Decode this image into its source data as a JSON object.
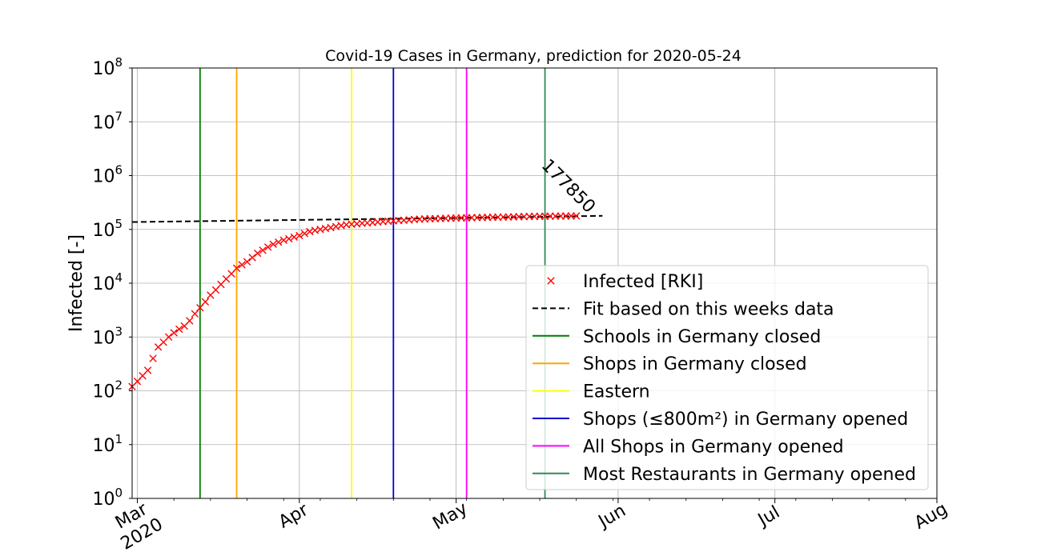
{
  "chart_data": {
    "type": "scatter",
    "title": "Covid-19 Cases in Germany, prediction for 2020-05-24",
    "xlabel": "",
    "ylabel": "Infected [-]",
    "yscale": "log",
    "ylim": [
      1,
      100000000
    ],
    "xlim": [
      "2020-02-29",
      "2020-08-01"
    ],
    "grid": true,
    "legend_position": "lower-right",
    "x_ticks": [
      {
        "date": "2020-03-01",
        "label": "Mar\n2020"
      },
      {
        "date": "2020-04-01",
        "label": "Apr"
      },
      {
        "date": "2020-05-01",
        "label": "May"
      },
      {
        "date": "2020-06-01",
        "label": "Jun"
      },
      {
        "date": "2020-07-01",
        "label": "Jul"
      },
      {
        "date": "2020-08-01",
        "label": "Aug"
      }
    ],
    "y_ticks": [
      {
        "value": 1,
        "base": "10",
        "exp": "0"
      },
      {
        "value": 10,
        "base": "10",
        "exp": "1"
      },
      {
        "value": 100,
        "base": "10",
        "exp": "2"
      },
      {
        "value": 1000,
        "base": "10",
        "exp": "3"
      },
      {
        "value": 10000,
        "base": "10",
        "exp": "4"
      },
      {
        "value": 100000,
        "base": "10",
        "exp": "5"
      },
      {
        "value": 1000000,
        "base": "10",
        "exp": "6"
      },
      {
        "value": 10000000,
        "base": "10",
        "exp": "7"
      },
      {
        "value": 100000000,
        "base": "10",
        "exp": "8"
      }
    ],
    "series": [
      {
        "name": "Infected [RKI]",
        "kind": "marker",
        "marker": "x",
        "color": "#ff0000",
        "x": [
          "2020-02-29",
          "2020-03-01",
          "2020-03-02",
          "2020-03-03",
          "2020-03-04",
          "2020-03-05",
          "2020-03-06",
          "2020-03-07",
          "2020-03-08",
          "2020-03-09",
          "2020-03-10",
          "2020-03-11",
          "2020-03-12",
          "2020-03-13",
          "2020-03-14",
          "2020-03-15",
          "2020-03-16",
          "2020-03-17",
          "2020-03-18",
          "2020-03-19",
          "2020-03-20",
          "2020-03-21",
          "2020-03-22",
          "2020-03-23",
          "2020-03-24",
          "2020-03-25",
          "2020-03-26",
          "2020-03-27",
          "2020-03-28",
          "2020-03-29",
          "2020-03-30",
          "2020-03-31",
          "2020-04-01",
          "2020-04-02",
          "2020-04-03",
          "2020-04-04",
          "2020-04-05",
          "2020-04-06",
          "2020-04-07",
          "2020-04-08",
          "2020-04-09",
          "2020-04-10",
          "2020-04-11",
          "2020-04-12",
          "2020-04-13",
          "2020-04-14",
          "2020-04-15",
          "2020-04-16",
          "2020-04-17",
          "2020-04-18",
          "2020-04-19",
          "2020-04-20",
          "2020-04-21",
          "2020-04-22",
          "2020-04-23",
          "2020-04-24",
          "2020-04-25",
          "2020-04-26",
          "2020-04-27",
          "2020-04-28",
          "2020-04-29",
          "2020-04-30",
          "2020-05-01",
          "2020-05-02",
          "2020-05-03",
          "2020-05-04",
          "2020-05-05",
          "2020-05-06",
          "2020-05-07",
          "2020-05-08",
          "2020-05-09",
          "2020-05-10",
          "2020-05-11",
          "2020-05-12",
          "2020-05-13",
          "2020-05-14",
          "2020-05-15",
          "2020-05-16",
          "2020-05-17",
          "2020-05-18",
          "2020-05-19",
          "2020-05-20",
          "2020-05-21",
          "2020-05-22",
          "2020-05-23",
          "2020-05-24"
        ],
        "y": [
          120,
          150,
          190,
          240,
          400,
          650,
          800,
          1000,
          1200,
          1400,
          1600,
          2000,
          2700,
          3500,
          4500,
          6000,
          7500,
          9500,
          12000,
          15000,
          19000,
          22000,
          25000,
          30000,
          36000,
          41000,
          47000,
          53000,
          58000,
          63000,
          67000,
          72000,
          77000,
          84000,
          91000,
          96000,
          100000,
          104000,
          108000,
          113000,
          118000,
          122000,
          125000,
          127000,
          130000,
          132000,
          134000,
          137000,
          140000,
          142000,
          144000,
          146000,
          148000,
          150000,
          153000,
          155000,
          156500,
          157500,
          158500,
          159500,
          160500,
          161500,
          162500,
          163200,
          164000,
          165000,
          165800,
          166500,
          167300,
          168200,
          169000,
          169800,
          170500,
          171300,
          172200,
          173000,
          173800,
          174500,
          175000,
          175500,
          176000,
          176500,
          177000,
          177300,
          177600,
          177850
        ]
      },
      {
        "name": "Fit based on this weeks data",
        "kind": "line",
        "dash": "dashed",
        "color": "#000000",
        "x": [
          "2020-02-29",
          "2020-03-15",
          "2020-04-01",
          "2020-04-15",
          "2020-05-01",
          "2020-05-15",
          "2020-05-29"
        ],
        "y": [
          137000,
          143000,
          150000,
          156000,
          163000,
          170000,
          179000
        ]
      }
    ],
    "vlines": [
      {
        "name": "Schools in Germany closed",
        "date": "2020-03-13",
        "color": "#008000"
      },
      {
        "name": "Shops in Germany closed",
        "date": "2020-03-20",
        "color": "#ffa500"
      },
      {
        "name": "Eastern",
        "date": "2020-04-11",
        "color": "#ffff00"
      },
      {
        "name": "Shops (≤800m²) in Germany opened",
        "date": "2020-04-19",
        "color": "#0000cd"
      },
      {
        "name": "All Shops in Germany opened",
        "date": "2020-05-03",
        "color": "#ff00ff"
      },
      {
        "name": "Most Restaurants in Germany opened",
        "date": "2020-05-18",
        "color": "#2e8b57"
      }
    ],
    "annotation": {
      "text": "177850",
      "date": "2020-05-23",
      "value": 177850
    }
  }
}
